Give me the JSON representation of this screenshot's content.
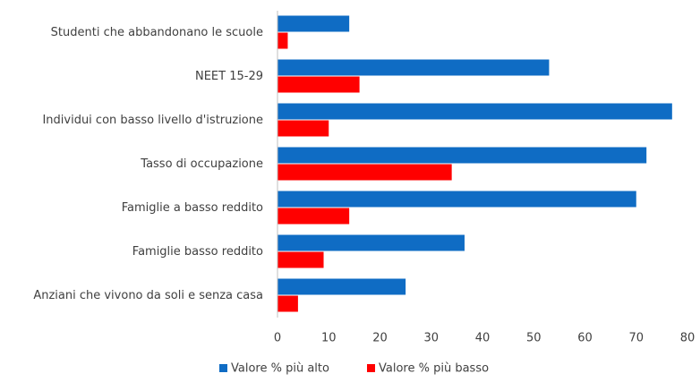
{
  "chart_data": {
    "type": "barh",
    "categories": [
      "Studenti che abbandonano le scuole",
      "NEET 15-29",
      "Individui con basso livello d'istruzione",
      "Tasso di occupazione",
      "Famiglie a basso reddito",
      "Famiglie basso reddito",
      "Anziani che vivono da soli e senza casa"
    ],
    "series": [
      {
        "name": "Valore % più alto",
        "color": "#0f6cc4",
        "values": [
          14,
          53,
          77,
          72,
          70,
          36.5,
          25
        ]
      },
      {
        "name": "Valore % più basso",
        "color": "#ff0000",
        "values": [
          2,
          16,
          10,
          34,
          14,
          9,
          4
        ]
      }
    ],
    "xlim": [
      0,
      80
    ],
    "xticks": [
      0,
      10,
      20,
      30,
      40,
      50,
      60,
      70,
      80
    ],
    "grid": false,
    "legend": "bottom"
  }
}
